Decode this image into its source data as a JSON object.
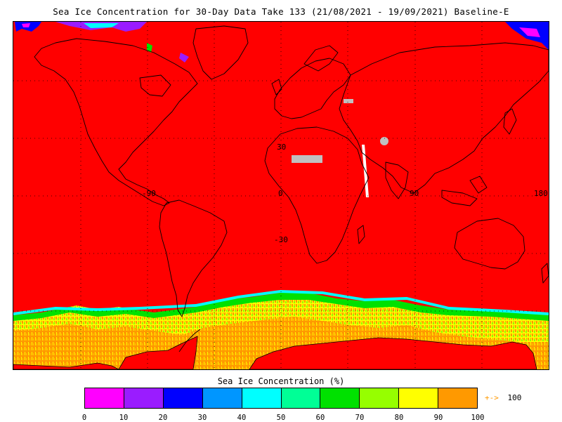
{
  "title": "Sea Ice Concentration for 30-Day Data Take 133 (21/08/2021 - 19/09/2021) Baseline-E",
  "map": {
    "background_color": "#ff0000",
    "land_color": "#ff0000",
    "coastline_color": "#000000",
    "no_data_color": "#c0c0c0",
    "grid_labels": {
      "lat_30n": "30",
      "lat_0": "0",
      "lat_30s": "-30",
      "lon_90w": "-90",
      "lon_0": "0",
      "lon_90e": "90",
      "lon_180": "180"
    }
  },
  "colorbar": {
    "title": "Sea Ice Concentration (%)",
    "colors": [
      "#ff00ff",
      "#9a1cff",
      "#0000ff",
      "#0096ff",
      "#00ffff",
      "#00ff96",
      "#00e100",
      "#96ff00",
      "#ffff00",
      "#ff9900"
    ],
    "ticks": [
      "0",
      "10",
      "20",
      "30",
      "40",
      "50",
      "60",
      "70",
      "80",
      "90",
      "100"
    ],
    "overflow_arrow": "+->",
    "overflow_label": "100"
  }
}
